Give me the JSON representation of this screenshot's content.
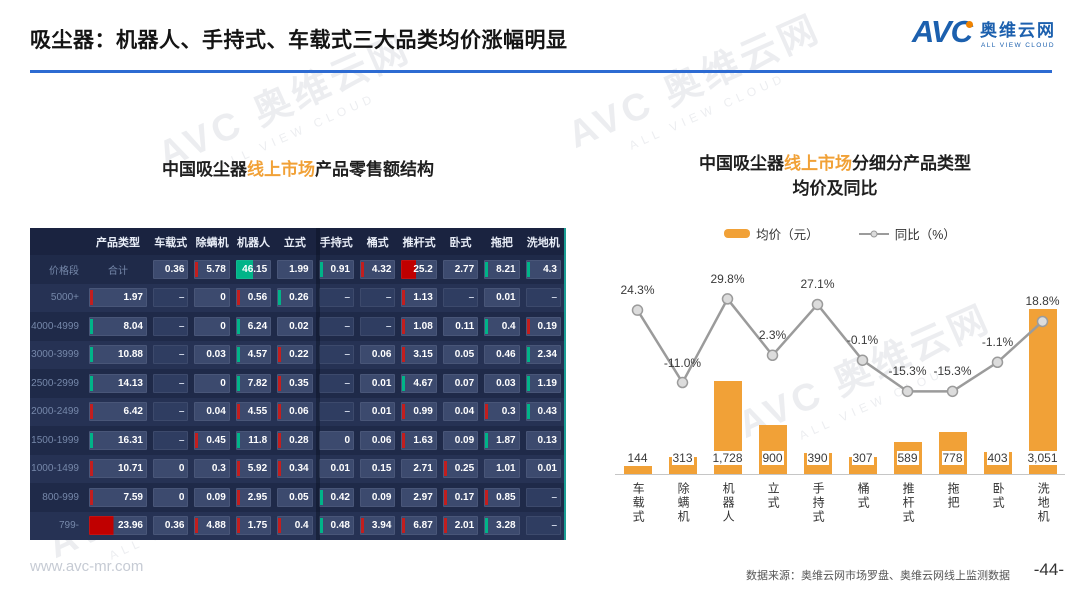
{
  "colors": {
    "accent_orange": "#F1A137",
    "brand_blue": "#1C60AE",
    "divider_blue": "#2D6BD2",
    "table_bg": "#1F2A49",
    "table_cell": "#3C4A6E",
    "mark_green": "#00B488",
    "mark_red": "#C21E1E",
    "line_gray": "#9B9B9B"
  },
  "header": {
    "title": "吸尘器：机器人、手持式、车载式三大品类均价涨幅明显",
    "logo": {
      "avc": "AVC",
      "cn": "奥维云网",
      "en": "ALL VIEW CLOUD"
    }
  },
  "watermark": {
    "text": "AVC 奥维云网",
    "sub": "ALL VIEW CLOUD"
  },
  "left_title": {
    "pre": "中国吸尘器",
    "highlight": "线上市场",
    "post": "产品零售额结构"
  },
  "right_title": {
    "pre": "中国吸尘器",
    "highlight": "线上市场",
    "post": "分细分产品类型",
    "line2": "均价及同比"
  },
  "footer": {
    "url": "www.avc-mr.com",
    "source": "数据来源：奥维云网市场罗盘、奥维云网线上监测数据",
    "page": "-44-"
  },
  "chart_data": [
    {
      "type": "table",
      "title": "中国吸尘器线上市场产品零售额结构",
      "corner_header": "",
      "row_header": "价格段",
      "type_header": "产品类型",
      "total_label": "合计",
      "columns": [
        "车载式",
        "除螨机",
        "机器人",
        "立式",
        "手持式",
        "桶式",
        "推杆式",
        "卧式",
        "拖把",
        "洗地机"
      ],
      "rows": [
        {
          "label": "价格段",
          "cells": [
            {
              "v": "合计",
              "m": "t"
            },
            {
              "v": "0.36"
            },
            {
              "v": "5.78",
              "m": "r"
            },
            {
              "v": "46.15",
              "m": "G"
            },
            {
              "v": "1.99"
            },
            {
              "v": "0.91",
              "m": "g"
            },
            {
              "v": "4.32",
              "m": "r"
            },
            {
              "v": "25.2",
              "m": "R"
            },
            {
              "v": "2.77"
            },
            {
              "v": "8.21",
              "m": "g"
            },
            {
              "v": "4.3",
              "m": "g"
            }
          ]
        },
        {
          "label": "5000+",
          "cells": [
            {
              "v": "1.97",
              "m": "r"
            },
            {
              "v": "–"
            },
            {
              "v": "0"
            },
            {
              "v": "0.56",
              "m": "r"
            },
            {
              "v": "0.26",
              "m": "g"
            },
            {
              "v": "–"
            },
            {
              "v": "–"
            },
            {
              "v": "1.13",
              "m": "r"
            },
            {
              "v": "–"
            },
            {
              "v": "0.01"
            },
            {
              "v": "–"
            }
          ]
        },
        {
          "label": "4000-4999",
          "cells": [
            {
              "v": "8.04",
              "m": "g"
            },
            {
              "v": "–"
            },
            {
              "v": "0"
            },
            {
              "v": "6.24",
              "m": "g"
            },
            {
              "v": "0.02"
            },
            {
              "v": "–"
            },
            {
              "v": "–"
            },
            {
              "v": "1.08",
              "m": "r"
            },
            {
              "v": "0.11"
            },
            {
              "v": "0.4",
              "m": "g"
            },
            {
              "v": "0.19",
              "m": "r"
            }
          ]
        },
        {
          "label": "3000-3999",
          "cells": [
            {
              "v": "10.88",
              "m": "g"
            },
            {
              "v": "–"
            },
            {
              "v": "0.03"
            },
            {
              "v": "4.57",
              "m": "g"
            },
            {
              "v": "0.22",
              "m": "r"
            },
            {
              "v": "–"
            },
            {
              "v": "0.06"
            },
            {
              "v": "3.15",
              "m": "r"
            },
            {
              "v": "0.05"
            },
            {
              "v": "0.46"
            },
            {
              "v": "2.34",
              "m": "g"
            }
          ]
        },
        {
          "label": "2500-2999",
          "cells": [
            {
              "v": "14.13",
              "m": "g"
            },
            {
              "v": "–"
            },
            {
              "v": "0"
            },
            {
              "v": "7.82",
              "m": "g"
            },
            {
              "v": "0.35",
              "m": "r"
            },
            {
              "v": "–"
            },
            {
              "v": "0.01"
            },
            {
              "v": "4.67",
              "m": "g"
            },
            {
              "v": "0.07"
            },
            {
              "v": "0.03"
            },
            {
              "v": "1.19",
              "m": "g"
            }
          ]
        },
        {
          "label": "2000-2499",
          "cells": [
            {
              "v": "6.42",
              "m": "r"
            },
            {
              "v": "–"
            },
            {
              "v": "0.04"
            },
            {
              "v": "4.55",
              "m": "r"
            },
            {
              "v": "0.06",
              "m": "r"
            },
            {
              "v": "–"
            },
            {
              "v": "0.01"
            },
            {
              "v": "0.99",
              "m": "r"
            },
            {
              "v": "0.04"
            },
            {
              "v": "0.3",
              "m": "r"
            },
            {
              "v": "0.43",
              "m": "g"
            }
          ]
        },
        {
          "label": "1500-1999",
          "cells": [
            {
              "v": "16.31",
              "m": "g"
            },
            {
              "v": "–"
            },
            {
              "v": "0.45",
              "m": "r"
            },
            {
              "v": "11.8",
              "m": "g"
            },
            {
              "v": "0.28",
              "m": "r"
            },
            {
              "v": "0"
            },
            {
              "v": "0.06"
            },
            {
              "v": "1.63",
              "m": "r"
            },
            {
              "v": "0.09"
            },
            {
              "v": "1.87",
              "m": "g"
            },
            {
              "v": "0.13"
            }
          ]
        },
        {
          "label": "1000-1499",
          "cells": [
            {
              "v": "10.71",
              "m": "r"
            },
            {
              "v": "0"
            },
            {
              "v": "0.3"
            },
            {
              "v": "5.92",
              "m": "r"
            },
            {
              "v": "0.34",
              "m": "r"
            },
            {
              "v": "0.01"
            },
            {
              "v": "0.15"
            },
            {
              "v": "2.71"
            },
            {
              "v": "0.25",
              "m": "r"
            },
            {
              "v": "1.01"
            },
            {
              "v": "0.01"
            }
          ]
        },
        {
          "label": "800-999",
          "cells": [
            {
              "v": "7.59",
              "m": "r"
            },
            {
              "v": "0"
            },
            {
              "v": "0.09"
            },
            {
              "v": "2.95",
              "m": "r"
            },
            {
              "v": "0.05"
            },
            {
              "v": "0.42",
              "m": "g"
            },
            {
              "v": "0.09"
            },
            {
              "v": "2.97"
            },
            {
              "v": "0.17",
              "m": "r"
            },
            {
              "v": "0.85",
              "m": "r"
            },
            {
              "v": "–"
            }
          ]
        },
        {
          "label": "799-",
          "cells": [
            {
              "v": "23.96",
              "m": "R"
            },
            {
              "v": "0.36"
            },
            {
              "v": "4.88",
              "m": "r"
            },
            {
              "v": "1.75",
              "m": "r"
            },
            {
              "v": "0.4",
              "m": "r"
            },
            {
              "v": "0.48",
              "m": "g"
            },
            {
              "v": "3.94",
              "m": "r"
            },
            {
              "v": "6.87",
              "m": "r"
            },
            {
              "v": "2.01",
              "m": "r"
            },
            {
              "v": "3.28",
              "m": "g"
            },
            {
              "v": "–"
            }
          ]
        }
      ]
    },
    {
      "type": "bar",
      "title": "中国吸尘器线上市场分细分产品类型均价及同比",
      "categories": [
        "车载式",
        "除螨机",
        "机器人",
        "立式",
        "手持式",
        "桶式",
        "推杆式",
        "拖把",
        "卧式",
        "洗地机"
      ],
      "series": [
        {
          "name": "均价（元）",
          "kind": "bar",
          "values": [
            144,
            313,
            1728,
            900,
            390,
            307,
            589,
            778,
            403,
            3051
          ],
          "labels": [
            "144",
            "313",
            "1,728",
            "900",
            "390",
            "307",
            "589",
            "778",
            "403",
            "3,051"
          ]
        },
        {
          "name": "同比（%）",
          "kind": "line",
          "values": [
            24.3,
            -11.0,
            29.8,
            2.3,
            27.1,
            -0.1,
            -15.3,
            -15.3,
            -1.1,
            18.8
          ],
          "labels": [
            "24.3%",
            "-11.0%",
            "29.8%",
            "2.3%",
            "27.1%",
            "-0.1%",
            "-15.3%",
            "-15.3%",
            "-1.1%",
            "18.8%"
          ]
        }
      ],
      "ylim": [
        0,
        3500
      ],
      "y2lim": [
        -20,
        35
      ],
      "legend_position": "top",
      "grid": false,
      "bar_color": "#F1A137",
      "line_color": "#9B9B9B"
    }
  ]
}
